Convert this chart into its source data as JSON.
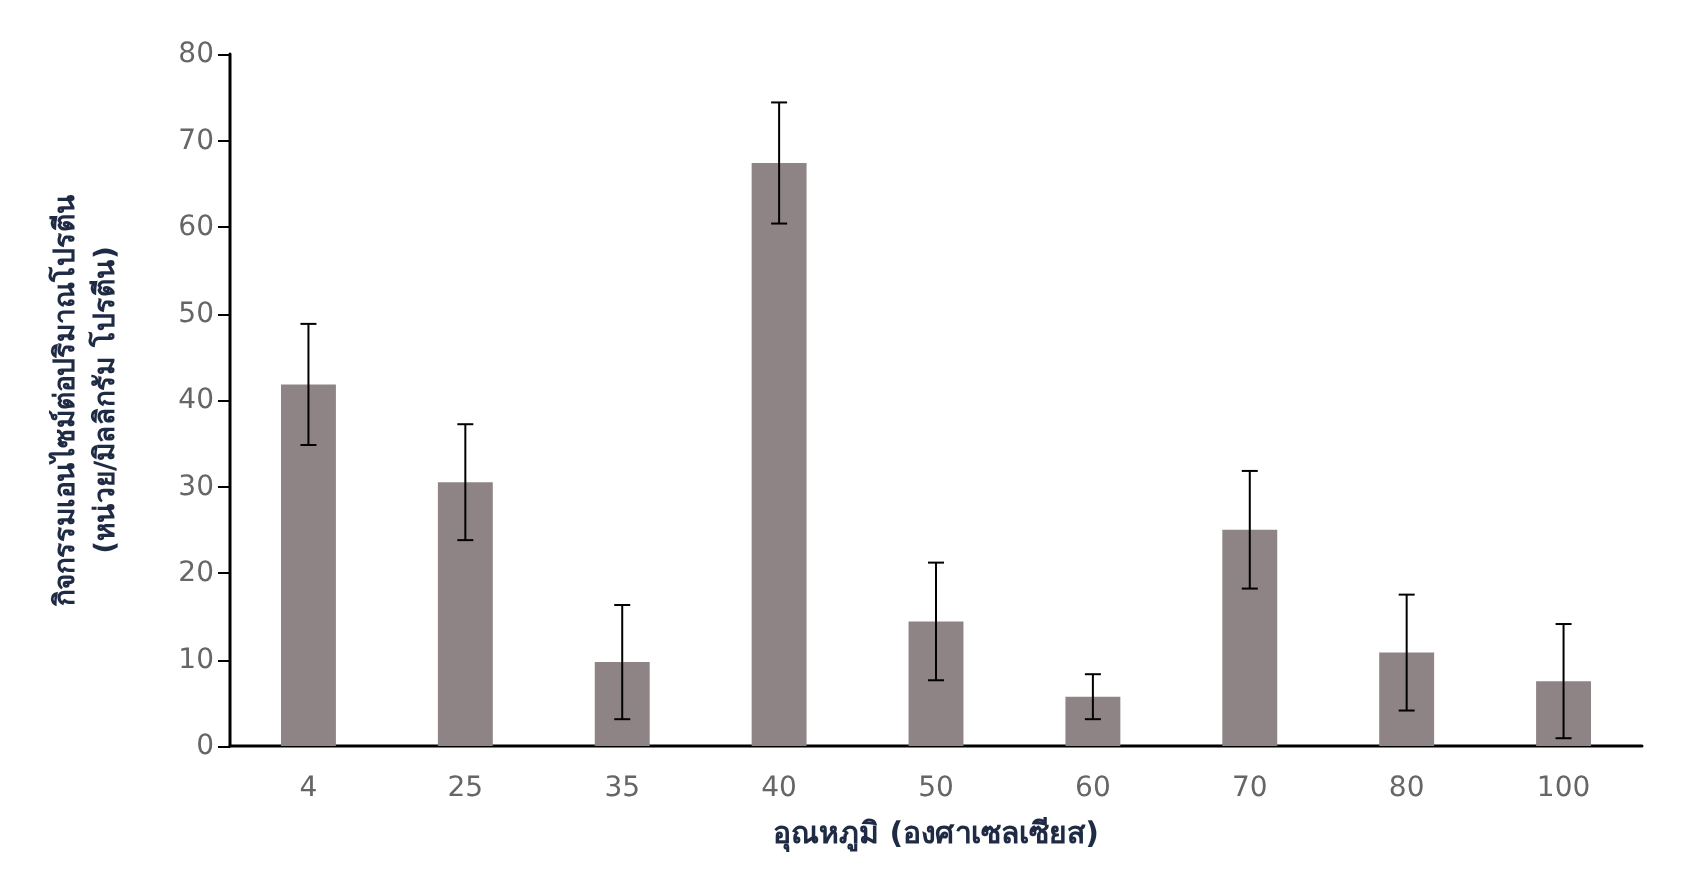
{
  "chart_data": {
    "type": "bar",
    "xlabel": "อุณหภูมิ (องศาเซลเซียส)",
    "ylabel": "กิจกรรมเอนไซม์ต่อปริมาณโปรตีน\n(หน่วย/มิลลิกรัม โปรตีน)",
    "categories": [
      "4",
      "25",
      "35",
      "40",
      "50",
      "60",
      "70",
      "80",
      "100"
    ],
    "values": [
      41.8,
      30.5,
      9.7,
      67.4,
      14.4,
      5.7,
      25,
      10.8,
      7.5
    ],
    "errors": [
      7,
      6.7,
      6.6,
      7,
      6.8,
      2.6,
      6.8,
      6.7,
      6.6
    ],
    "color": "#8e8385",
    "ylim": [
      0,
      80
    ],
    "yticks": [
      0,
      10,
      20,
      30,
      40,
      50,
      60,
      70,
      80
    ],
    "grid": false
  }
}
